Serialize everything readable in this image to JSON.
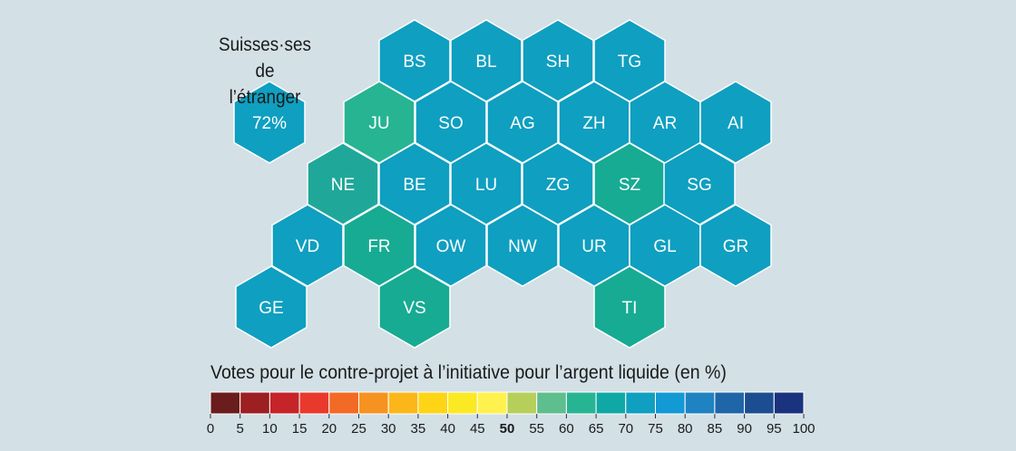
{
  "abroad": {
    "title_line1": "Suisses·ses de",
    "title_line2": "l’étranger",
    "value_label": "72%",
    "color": "#0f9fc0"
  },
  "colors": {
    "background": "#d3e0e6",
    "tile_teal": "#0f9fc0",
    "tile_green": "#17ab93",
    "tile_green_light": "#27b493",
    "tile_green_mid": "#1fa899",
    "hex_border": "#ffffff"
  },
  "chart_data": {
    "type": "hex-tile-map",
    "title": "Votes pour le contre-projet à l’initiative pour l’argent liquide (en %)",
    "cantons": [
      {
        "code": "BS",
        "color": "#0f9fc0"
      },
      {
        "code": "BL",
        "color": "#0f9fc0"
      },
      {
        "code": "SH",
        "color": "#0f9fc0"
      },
      {
        "code": "TG",
        "color": "#0f9fc0"
      },
      {
        "code": "JU",
        "color": "#27b493"
      },
      {
        "code": "SO",
        "color": "#0f9fc0"
      },
      {
        "code": "AG",
        "color": "#0f9fc0"
      },
      {
        "code": "ZH",
        "color": "#0f9fc0"
      },
      {
        "code": "AR",
        "color": "#0f9fc0"
      },
      {
        "code": "AI",
        "color": "#0f9fc0"
      },
      {
        "code": "NE",
        "color": "#1fa899"
      },
      {
        "code": "BE",
        "color": "#0f9fc0"
      },
      {
        "code": "LU",
        "color": "#0f9fc0"
      },
      {
        "code": "ZG",
        "color": "#0f9fc0"
      },
      {
        "code": "SZ",
        "color": "#17ab93"
      },
      {
        "code": "SG",
        "color": "#0f9fc0"
      },
      {
        "code": "VD",
        "color": "#0f9fc0"
      },
      {
        "code": "FR",
        "color": "#17ab93"
      },
      {
        "code": "OW",
        "color": "#0f9fc0"
      },
      {
        "code": "NW",
        "color": "#0f9fc0"
      },
      {
        "code": "UR",
        "color": "#0f9fc0"
      },
      {
        "code": "GL",
        "color": "#0f9fc0"
      },
      {
        "code": "GR",
        "color": "#0f9fc0"
      },
      {
        "code": "GE",
        "color": "#0f9fc0"
      },
      {
        "code": "VS",
        "color": "#17ab93"
      },
      {
        "code": "TI",
        "color": "#17ab93"
      }
    ],
    "legend": {
      "ticks": [
        "0",
        "5",
        "10",
        "15",
        "20",
        "25",
        "30",
        "35",
        "40",
        "45",
        "50",
        "55",
        "60",
        "65",
        "70",
        "75",
        "80",
        "85",
        "90",
        "95",
        "100"
      ],
      "bold_tick": "50",
      "colors": [
        "#6b1c1c",
        "#9c1f22",
        "#c52428",
        "#e8392c",
        "#f26a25",
        "#f69320",
        "#fbb71a",
        "#fdd516",
        "#fbe924",
        "#fff24e",
        "#b6cf5a",
        "#5fbe8e",
        "#27b493",
        "#10a8a5",
        "#0f9fc0",
        "#1399d4",
        "#1f83c2",
        "#1f66a8",
        "#1d4d91",
        "#1a337f"
      ]
    }
  }
}
